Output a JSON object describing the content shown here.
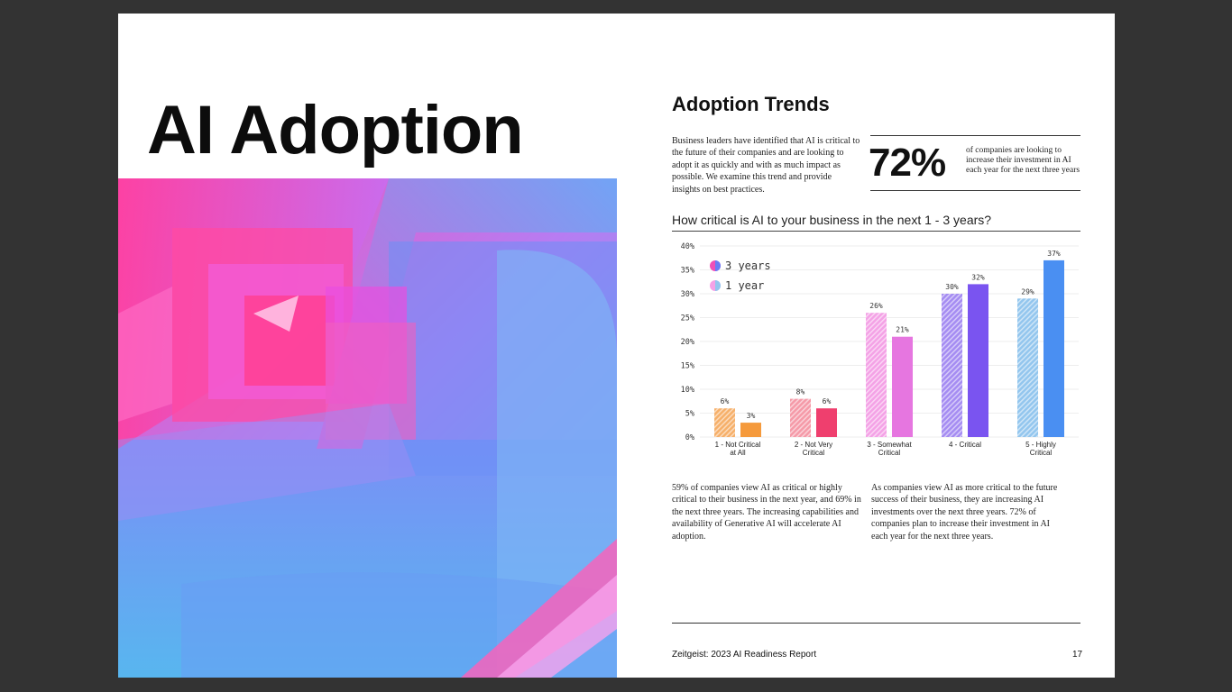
{
  "page": {
    "big_title": "AI Adoption",
    "section_title": "Adoption Trends",
    "intro": "Business leaders have identified that AI is critical to the future of their companies and are looking to adopt it as quickly and with as much impact as possible. We examine this trend and provide insights on best practices.",
    "stat_value": "72%",
    "stat_text": "of companies are looking to increase their investment in AI each year for the next three years",
    "chart_question": "How critical is AI to your business in the next 1 - 3 years?",
    "para_left": "59% of companies view AI as critical or highly critical to their business in the next year, and 69% in the next three years. The increasing capabilities and availability of Generative AI will accelerate AI adoption.",
    "para_right": "As companies view AI as more critical to the future success of their business, they are increasing AI investments over the next three years. 72% of companies plan to increase their investment in AI each year for the next three years.",
    "footer_left": "Zeitgeist: 2023 AI Readiness Report",
    "page_number": "17"
  },
  "chart_data": {
    "type": "bar",
    "title": "How critical is AI to your business in the next 1 - 3 years?",
    "categories": [
      "1 - Not Critical|at All",
      "2 - Not Very|Critical",
      "3 - Somewhat|Critical",
      "4 - Critical",
      "5 - Highly|Critical"
    ],
    "series": [
      {
        "name": "1 year",
        "values": [
          6,
          8,
          26,
          30,
          29
        ],
        "labels": [
          "6%",
          "8%",
          "26%",
          "30%",
          "29%"
        ]
      },
      {
        "name": "3 years",
        "values": [
          3,
          6,
          21,
          32,
          37
        ],
        "labels": [
          "3%",
          "6%",
          "21%",
          "32%",
          "37%"
        ]
      }
    ],
    "legend": [
      "3 years",
      "1 year"
    ],
    "legend_position": "top-left",
    "ylim": [
      0,
      40
    ],
    "yticks": [
      0,
      5,
      10,
      15,
      20,
      25,
      30,
      35,
      40
    ],
    "ytick_labels": [
      "0%",
      "5%",
      "10%",
      "15%",
      "20%",
      "25%",
      "30%",
      "35%",
      "40%"
    ],
    "colors": {
      "one_year": [
        "#f6b06a",
        "#f59aa8",
        "#f4a2e6",
        "#a58cf2",
        "#93c6ee"
      ],
      "three_years": [
        "#f59a3c",
        "#ef3f6e",
        "#e676e0",
        "#7a54f0",
        "#4a8ff2"
      ]
    }
  }
}
